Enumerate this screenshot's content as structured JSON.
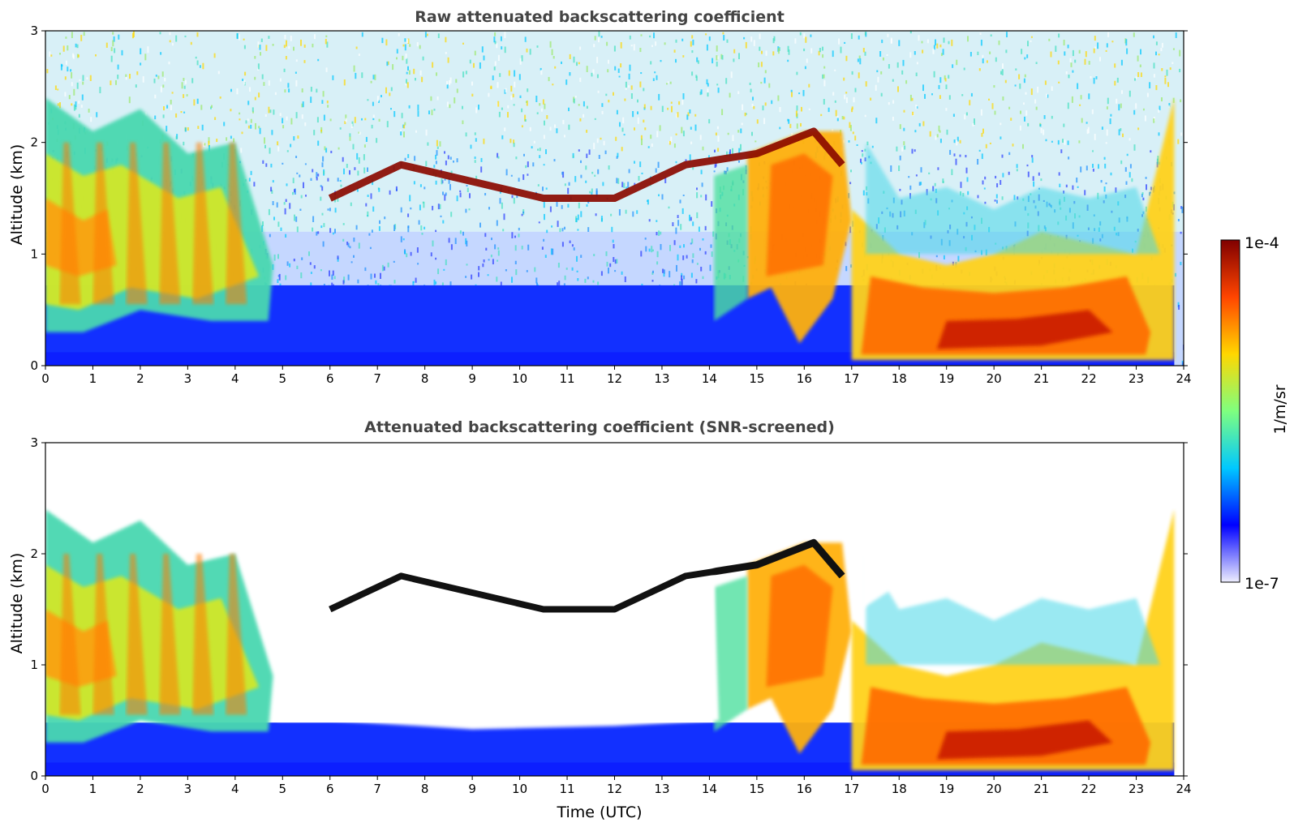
{
  "chart_data": [
    {
      "type": "heatmap",
      "title": "Raw attenuated backscattering coefficient",
      "xlabel": "",
      "ylabel": "Altitude (km)",
      "xlim": [
        0,
        24
      ],
      "ylim": [
        0,
        3
      ],
      "xticks": [
        "0",
        "1",
        "2",
        "3",
        "4",
        "5",
        "6",
        "7",
        "8",
        "9",
        "10",
        "11",
        "12",
        "13",
        "14",
        "15",
        "16",
        "17",
        "18",
        "19",
        "20",
        "21",
        "22",
        "23",
        "24"
      ],
      "yticks": [
        "0",
        "1",
        "2",
        "3"
      ],
      "color_scale": "log",
      "cloud_layer_km": [
        {
          "time": 6.0,
          "altitude": 1.5
        },
        {
          "time": 7.5,
          "altitude": 1.8
        },
        {
          "time": 8.5,
          "altitude": 1.7
        },
        {
          "time": 10.5,
          "altitude": 1.5
        },
        {
          "time": 12.0,
          "altitude": 1.5
        },
        {
          "time": 13.5,
          "altitude": 1.8
        },
        {
          "time": 15.0,
          "altitude": 1.9
        },
        {
          "time": 16.2,
          "altitude": 2.1
        },
        {
          "time": 16.8,
          "altitude": 1.8
        }
      ],
      "noise": "speckled above boundary layer"
    },
    {
      "type": "heatmap",
      "title": "Attenuated backscattering coefficient (SNR-screened)",
      "xlabel": "Time (UTC)",
      "ylabel": "Altitude (km)",
      "xlim": [
        0,
        24
      ],
      "ylim": [
        0,
        3
      ],
      "xticks": [
        "0",
        "1",
        "2",
        "3",
        "4",
        "5",
        "6",
        "7",
        "8",
        "9",
        "10",
        "11",
        "12",
        "13",
        "14",
        "15",
        "16",
        "17",
        "18",
        "19",
        "20",
        "21",
        "22",
        "23",
        "24"
      ],
      "yticks": [
        "0",
        "1",
        "2",
        "3"
      ],
      "color_scale": "log",
      "noise": "screened (white)"
    }
  ],
  "colorbar": {
    "label": "1/m/sr",
    "max_label": "1e-4",
    "min_label": "1e-7",
    "colormap": "jet",
    "colors": [
      "#eeeefe",
      "#0000ff",
      "#00c8ff",
      "#7fff7f",
      "#ffd700",
      "#ff4500",
      "#800000"
    ]
  }
}
